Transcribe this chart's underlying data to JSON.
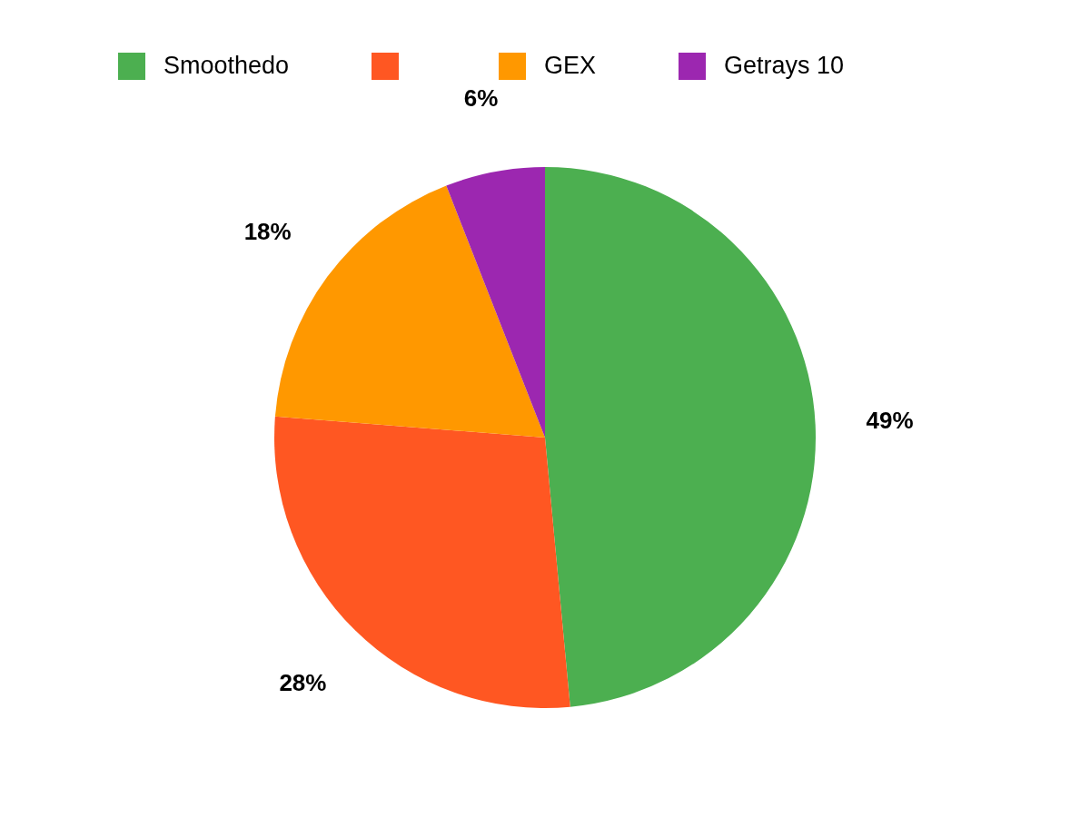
{
  "chart_data": {
    "type": "pie",
    "categories": [
      "Smoothedo",
      null,
      "GEX",
      "Getrays 10"
    ],
    "values": [
      49,
      28,
      18,
      6
    ],
    "colors": [
      "#4caf50",
      "#ff5722",
      "#ff9800",
      "#9c27b0"
    ],
    "value_labels": [
      "49%",
      "28%",
      "18%",
      "6%"
    ],
    "legend": "top"
  }
}
